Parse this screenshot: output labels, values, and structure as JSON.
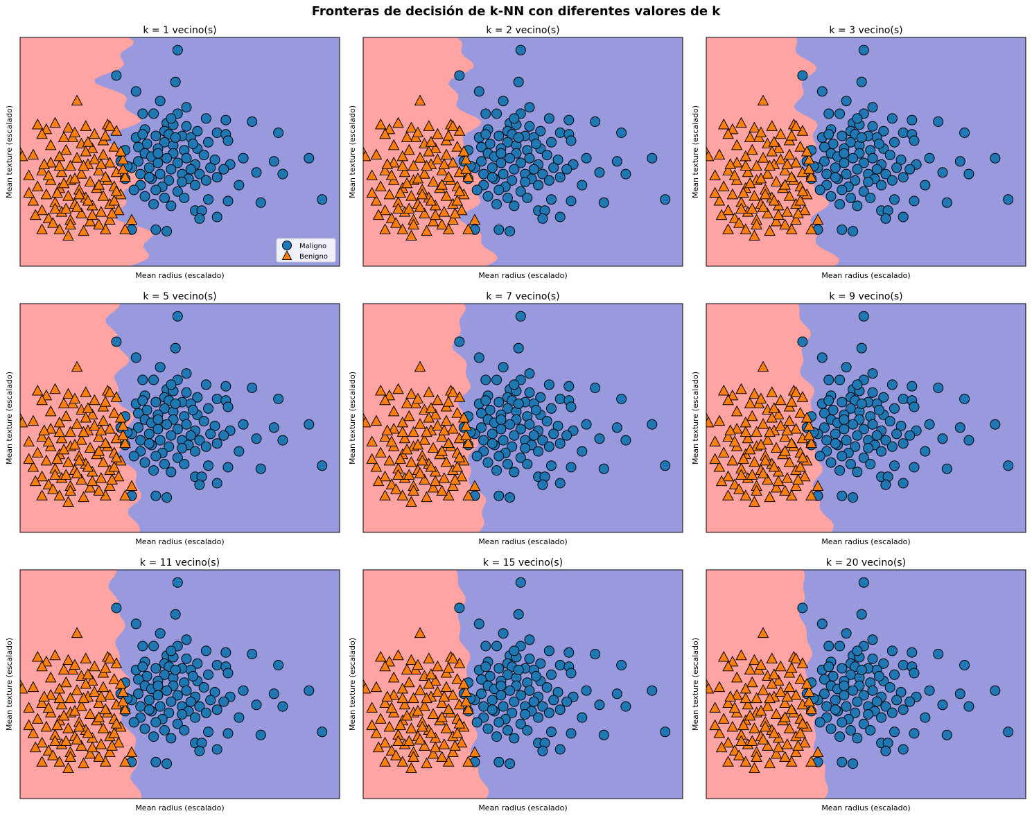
{
  "figure_title": "Fronteras de decisión de k-NN con diferentes valores de k",
  "colors": {
    "malignant_region": "#9999dd",
    "benign_region": "#ffa3a3",
    "malignant_marker": "#1f77b4",
    "benign_marker": "#ff7f0e",
    "edge": "#000000"
  },
  "chart_data": [
    {
      "type": "scatter",
      "k": 1,
      "title": "k = 1 vecino(s)",
      "xlabel": "Mean radius (escalado)",
      "ylabel": "Mean texture (escalado)",
      "xlim": [
        -2.5,
        4.8
      ],
      "ylim": [
        -2.6,
        4.6
      ],
      "legend": "bottom-right",
      "grid": false,
      "ticks": false
    },
    {
      "type": "scatter",
      "k": 2,
      "title": "k = 2 vecino(s)",
      "xlabel": "Mean radius (escalado)",
      "ylabel": "Mean texture (escalado)",
      "xlim": [
        -2.5,
        4.8
      ],
      "ylim": [
        -2.6,
        4.6
      ],
      "grid": false,
      "ticks": false
    },
    {
      "type": "scatter",
      "k": 3,
      "title": "k = 3 vecino(s)",
      "xlabel": "Mean radius (escalado)",
      "ylabel": "Mean texture (escalado)",
      "xlim": [
        -2.5,
        4.8
      ],
      "ylim": [
        -2.6,
        4.6
      ],
      "grid": false,
      "ticks": false
    },
    {
      "type": "scatter",
      "k": 5,
      "title": "k = 5 vecino(s)",
      "xlabel": "Mean radius (escalado)",
      "ylabel": "Mean texture (escalado)",
      "xlim": [
        -2.5,
        4.8
      ],
      "ylim": [
        -2.6,
        4.6
      ],
      "grid": false,
      "ticks": false
    },
    {
      "type": "scatter",
      "k": 7,
      "title": "k = 7 vecino(s)",
      "xlabel": "Mean radius (escalado)",
      "ylabel": "Mean texture (escalado)",
      "xlim": [
        -2.5,
        4.8
      ],
      "ylim": [
        -2.6,
        4.6
      ],
      "grid": false,
      "ticks": false
    },
    {
      "type": "scatter",
      "k": 9,
      "title": "k = 9 vecino(s)",
      "xlabel": "Mean radius (escalado)",
      "ylabel": "Mean texture (escalado)",
      "xlim": [
        -2.5,
        4.8
      ],
      "ylim": [
        -2.6,
        4.6
      ],
      "grid": false,
      "ticks": false
    },
    {
      "type": "scatter",
      "k": 11,
      "title": "k = 11 vecino(s)",
      "xlabel": "Mean radius (escalado)",
      "ylabel": "Mean texture (escalado)",
      "xlim": [
        -2.5,
        4.8
      ],
      "ylim": [
        -2.6,
        4.6
      ],
      "grid": false,
      "ticks": false
    },
    {
      "type": "scatter",
      "k": 15,
      "title": "k = 15 vecino(s)",
      "xlabel": "Mean radius (escalado)",
      "ylabel": "Mean texture (escalado)",
      "xlim": [
        -2.5,
        4.8
      ],
      "ylim": [
        -2.6,
        4.6
      ],
      "grid": false,
      "ticks": false
    },
    {
      "type": "scatter",
      "k": 20,
      "title": "k = 20 vecino(s)",
      "xlabel": "Mean radius (escalado)",
      "ylabel": "Mean texture (escalado)",
      "xlim": [
        -2.5,
        4.8
      ],
      "ylim": [
        -2.6,
        4.6
      ],
      "grid": false,
      "ticks": false
    }
  ],
  "legend": [
    {
      "label": "Maligno",
      "marker": "circle",
      "class": "malignant"
    },
    {
      "label": "Benigno",
      "marker": "triangle",
      "class": "benign"
    }
  ],
  "series": {
    "malignant": [
      [
        1.1,
        4.2
      ],
      [
        -0.3,
        3.4
      ],
      [
        1.05,
        3.2
      ],
      [
        0.15,
        2.9
      ],
      [
        0.7,
        2.6
      ],
      [
        1.3,
        2.4
      ],
      [
        0.3,
        2.2
      ],
      [
        0.55,
        2.2
      ],
      [
        1.1,
        2.2
      ],
      [
        1.75,
        2.05
      ],
      [
        2.2,
        2.0
      ],
      [
        2.8,
        1.95
      ],
      [
        0.85,
        1.9
      ],
      [
        1.0,
        1.85
      ],
      [
        1.3,
        1.8
      ],
      [
        0.35,
        1.7
      ],
      [
        0.8,
        1.65
      ],
      [
        1.55,
        1.65
      ],
      [
        0.9,
        1.55
      ],
      [
        1.2,
        1.5
      ],
      [
        2.0,
        1.6
      ],
      [
        2.2,
        1.55
      ],
      [
        3.4,
        1.6
      ],
      [
        0.15,
        1.45
      ],
      [
        0.6,
        1.5
      ],
      [
        1.4,
        1.45
      ],
      [
        2.25,
        1.35
      ],
      [
        0.4,
        1.25
      ],
      [
        0.8,
        1.3
      ],
      [
        1.0,
        1.2
      ],
      [
        1.8,
        1.3
      ],
      [
        0.2,
        1.15
      ],
      [
        0.65,
        1.1
      ],
      [
        1.25,
        1.05
      ],
      [
        1.55,
        1.1
      ],
      [
        -0.1,
        1.05
      ],
      [
        0.35,
        0.95
      ],
      [
        1.0,
        0.95
      ],
      [
        1.7,
        0.9
      ],
      [
        0.5,
        0.85
      ],
      [
        0.85,
        0.8
      ],
      [
        1.3,
        0.8
      ],
      [
        1.95,
        0.75
      ],
      [
        2.6,
        0.8
      ],
      [
        -0.2,
        0.7
      ],
      [
        0.2,
        0.7
      ],
      [
        0.65,
        0.65
      ],
      [
        1.1,
        0.65
      ],
      [
        1.5,
        0.6
      ],
      [
        2.3,
        0.6
      ],
      [
        3.3,
        0.7
      ],
      [
        4.1,
        0.8
      ],
      [
        0.05,
        0.5
      ],
      [
        0.45,
        0.5
      ],
      [
        0.95,
        0.45
      ],
      [
        1.4,
        0.45
      ],
      [
        1.85,
        0.5
      ],
      [
        2.15,
        0.45
      ],
      [
        0.25,
        0.3
      ],
      [
        0.7,
        0.3
      ],
      [
        1.2,
        0.3
      ],
      [
        1.6,
        0.3
      ],
      [
        2.9,
        0.35
      ],
      [
        3.5,
        0.3
      ],
      [
        0.5,
        0.15
      ],
      [
        0.9,
        0.1
      ],
      [
        1.35,
        0.15
      ],
      [
        -0.1,
        0.15
      ],
      [
        1.75,
        0.1
      ],
      [
        2.0,
        0.2
      ],
      [
        0.25,
        -0.05
      ],
      [
        0.75,
        -0.1
      ],
      [
        1.5,
        -0.05
      ],
      [
        0.6,
        -0.2
      ],
      [
        1.1,
        -0.25
      ],
      [
        2.5,
        -0.05
      ],
      [
        0.1,
        -0.2
      ],
      [
        0.35,
        -0.4
      ],
      [
        0.8,
        -0.45
      ],
      [
        1.25,
        -0.45
      ],
      [
        1.8,
        -0.5
      ],
      [
        3.0,
        -0.6
      ],
      [
        4.4,
        -0.5
      ],
      [
        0.55,
        -0.65
      ],
      [
        0.95,
        -0.7
      ],
      [
        2.25,
        -0.55
      ],
      [
        1.5,
        -0.85
      ],
      [
        1.65,
        -0.85
      ],
      [
        2.0,
        -1.05
      ],
      [
        1.6,
        -1.1
      ],
      [
        0.85,
        -1.5
      ],
      [
        0.05,
        -1.45
      ],
      [
        0.6,
        -1.45
      ],
      [
        0.45,
        0.2
      ],
      [
        0.65,
        0.95
      ],
      [
        1.05,
        1.45
      ],
      [
        1.45,
        1.25
      ],
      [
        1.2,
        0.05
      ],
      [
        -0.05,
        0.55
      ],
      [
        0.3,
        1.55
      ],
      [
        0.95,
        2.05
      ]
    ],
    "benign": [
      [
        -1.2,
        2.6
      ],
      [
        -1.7,
        1.9
      ],
      [
        -2.1,
        1.85
      ],
      [
        -0.5,
        1.85
      ],
      [
        -1.9,
        1.7
      ],
      [
        -1.4,
        1.75
      ],
      [
        -1.0,
        1.8
      ],
      [
        -0.8,
        1.55
      ],
      [
        -1.3,
        1.45
      ],
      [
        -0.3,
        1.65
      ],
      [
        -2.0,
        1.55
      ],
      [
        -1.1,
        1.25
      ],
      [
        -0.6,
        1.35
      ],
      [
        -2.55,
        1.1
      ],
      [
        -1.45,
        1.05
      ],
      [
        -0.85,
        1.1
      ],
      [
        -0.35,
        1.15
      ],
      [
        -1.6,
        0.85
      ],
      [
        -1.2,
        0.8
      ],
      [
        -0.6,
        0.9
      ],
      [
        -2.2,
        0.9
      ],
      [
        -1.8,
        0.65
      ],
      [
        -1.35,
        0.55
      ],
      [
        -0.95,
        0.6
      ],
      [
        -0.45,
        0.65
      ],
      [
        -0.15,
        0.75
      ],
      [
        -2.0,
        0.4
      ],
      [
        -1.55,
        0.35
      ],
      [
        -1.1,
        0.3
      ],
      [
        -0.7,
        0.4
      ],
      [
        -0.3,
        0.35
      ],
      [
        -2.3,
        0.25
      ],
      [
        -1.8,
        0.1
      ],
      [
        -1.35,
        0.1
      ],
      [
        -0.9,
        0.05
      ],
      [
        -0.5,
        0.1
      ],
      [
        -0.1,
        0.2
      ],
      [
        -2.1,
        -0.1
      ],
      [
        -1.6,
        -0.15
      ],
      [
        -1.15,
        -0.2
      ],
      [
        -0.75,
        -0.15
      ],
      [
        -0.35,
        -0.1
      ],
      [
        -1.9,
        -0.35
      ],
      [
        -1.4,
        -0.4
      ],
      [
        -1.0,
        -0.45
      ],
      [
        -0.6,
        -0.4
      ],
      [
        -0.2,
        -0.35
      ],
      [
        -2.2,
        -0.55
      ],
      [
        -1.7,
        -0.6
      ],
      [
        -1.25,
        -0.65
      ],
      [
        -0.85,
        -0.7
      ],
      [
        -0.45,
        -0.65
      ],
      [
        -2.0,
        -0.85
      ],
      [
        -1.55,
        -0.9
      ],
      [
        -1.1,
        -0.95
      ],
      [
        -0.65,
        -0.9
      ],
      [
        -0.25,
        -0.85
      ],
      [
        -1.85,
        -1.1
      ],
      [
        -1.35,
        -1.15
      ],
      [
        -0.9,
        -1.2
      ],
      [
        -0.45,
        -1.15
      ],
      [
        -2.65,
        -1.2
      ],
      [
        -1.6,
        -1.45
      ],
      [
        -1.05,
        -1.5
      ],
      [
        -0.55,
        -1.45
      ],
      [
        -2.0,
        -1.45
      ],
      [
        -1.4,
        -1.65
      ],
      [
        -0.1,
        -1.45
      ],
      [
        0.05,
        -1.15
      ],
      [
        -1.65,
        -0.3
      ],
      [
        -1.05,
        0.55
      ],
      [
        -0.55,
        1.5
      ],
      [
        -1.5,
        1.45
      ],
      [
        -0.95,
        1.3
      ],
      [
        -1.8,
        1.2
      ],
      [
        -0.2,
        1.0
      ],
      [
        -1.25,
        0.15
      ],
      [
        -0.7,
        -0.05
      ],
      [
        -0.35,
        -0.55
      ],
      [
        -1.45,
        -0.8
      ],
      [
        -0.85,
        -1.0
      ],
      [
        -1.95,
        0.6
      ],
      [
        -2.3,
        -0.3
      ],
      [
        -1.6,
        0.55
      ],
      [
        -0.8,
        0.75
      ],
      [
        -1.15,
        -0.35
      ],
      [
        -0.3,
        -0.25
      ],
      [
        -1.75,
        -1.25
      ],
      [
        -0.7,
        -1.3
      ],
      [
        -2.45,
        0.85
      ],
      [
        -1.0,
        1.0
      ],
      [
        -1.35,
        -1.3
      ],
      [
        -0.15,
        0.45
      ],
      [
        -1.85,
        0.25
      ],
      [
        -0.55,
        0.2
      ],
      [
        -1.2,
        -0.75
      ],
      [
        -2.15,
        -1.0
      ],
      [
        -0.4,
        -0.95
      ],
      [
        -1.5,
        0.0
      ],
      [
        -0.95,
        -0.55
      ],
      [
        -1.7,
        -0.8
      ],
      [
        -0.65,
        0.6
      ],
      [
        -1.25,
        1.6
      ],
      [
        -0.45,
        1.8
      ]
    ]
  }
}
